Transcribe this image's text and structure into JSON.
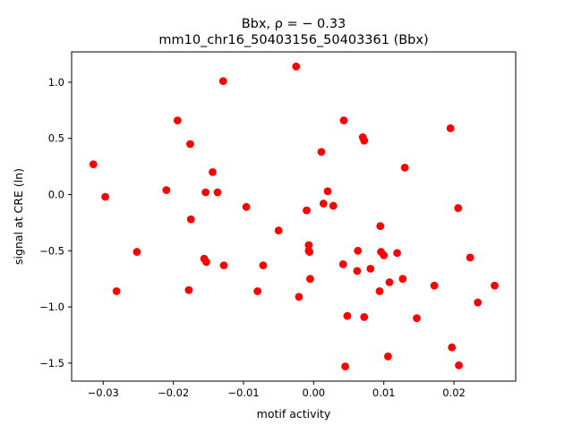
{
  "chart_data": {
    "type": "scatter",
    "title_line1": "Bbx, ρ = − 0.33",
    "title_line2": "mm10_chr16_50403156_50403361 (Bbx)",
    "xlabel": "motif activity",
    "ylabel": "signal at CRE (ln)",
    "xlim": [
      -0.0345,
      0.0288
    ],
    "ylim": [
      -1.66,
      1.27
    ],
    "xticks": [
      -0.03,
      -0.02,
      -0.01,
      0.0,
      0.01,
      0.02
    ],
    "xtick_labels": [
      "−0.03",
      "−0.02",
      "−0.01",
      "0.00",
      "0.01",
      "0.02"
    ],
    "yticks": [
      -1.5,
      -1.0,
      -0.5,
      0.0,
      0.5,
      1.0
    ],
    "ytick_labels": [
      "−1.5",
      "−1.0",
      "−0.5",
      "0.0",
      "0.5",
      "1.0"
    ],
    "grid": false,
    "marker_color": "#ff0000",
    "points": [
      {
        "x": -0.0314,
        "y": 0.27
      },
      {
        "x": -0.0297,
        "y": -0.02
      },
      {
        "x": -0.0281,
        "y": -0.86
      },
      {
        "x": -0.0252,
        "y": -0.51
      },
      {
        "x": -0.021,
        "y": 0.04
      },
      {
        "x": -0.0194,
        "y": 0.66
      },
      {
        "x": -0.0178,
        "y": -0.85
      },
      {
        "x": -0.0176,
        "y": 0.45
      },
      {
        "x": -0.0175,
        "y": -0.22
      },
      {
        "x": -0.0156,
        "y": -0.57
      },
      {
        "x": -0.0154,
        "y": 0.02
      },
      {
        "x": -0.0153,
        "y": -0.6
      },
      {
        "x": -0.0144,
        "y": 0.2
      },
      {
        "x": -0.0137,
        "y": 0.02
      },
      {
        "x": -0.0129,
        "y": 1.01
      },
      {
        "x": -0.0128,
        "y": -0.63
      },
      {
        "x": -0.0096,
        "y": -0.11
      },
      {
        "x": -0.008,
        "y": -0.86
      },
      {
        "x": -0.0072,
        "y": -0.63
      },
      {
        "x": -0.005,
        "y": -0.32
      },
      {
        "x": -0.0025,
        "y": 1.14
      },
      {
        "x": -0.0021,
        "y": -0.91
      },
      {
        "x": -0.001,
        "y": -0.14
      },
      {
        "x": -0.0007,
        "y": -0.45
      },
      {
        "x": -0.0007,
        "y": -0.5
      },
      {
        "x": -0.0006,
        "y": -0.51
      },
      {
        "x": -0.0005,
        "y": -0.75
      },
      {
        "x": 0.0011,
        "y": 0.38
      },
      {
        "x": 0.0014,
        "y": -0.08
      },
      {
        "x": 0.002,
        "y": 0.03
      },
      {
        "x": 0.0028,
        "y": -0.1
      },
      {
        "x": 0.0042,
        "y": -0.62
      },
      {
        "x": 0.0043,
        "y": 0.66
      },
      {
        "x": 0.0045,
        "y": -1.53
      },
      {
        "x": 0.0048,
        "y": -1.08
      },
      {
        "x": 0.0062,
        "y": -0.68
      },
      {
        "x": 0.0063,
        "y": -0.5
      },
      {
        "x": 0.007,
        "y": 0.51
      },
      {
        "x": 0.0072,
        "y": 0.48
      },
      {
        "x": 0.0072,
        "y": -1.09
      },
      {
        "x": 0.0081,
        "y": -0.66
      },
      {
        "x": 0.0094,
        "y": -0.86
      },
      {
        "x": 0.0095,
        "y": -0.28
      },
      {
        "x": 0.0096,
        "y": -0.51
      },
      {
        "x": 0.01,
        "y": -0.54
      },
      {
        "x": 0.0106,
        "y": -1.44
      },
      {
        "x": 0.0108,
        "y": -0.78
      },
      {
        "x": 0.0119,
        "y": -0.52
      },
      {
        "x": 0.0127,
        "y": -0.75
      },
      {
        "x": 0.013,
        "y": 0.24
      },
      {
        "x": 0.0147,
        "y": -1.1
      },
      {
        "x": 0.0172,
        "y": -0.81
      },
      {
        "x": 0.0195,
        "y": 0.59
      },
      {
        "x": 0.0197,
        "y": -1.36
      },
      {
        "x": 0.0206,
        "y": -0.12
      },
      {
        "x": 0.0207,
        "y": -1.52
      },
      {
        "x": 0.0223,
        "y": -0.56
      },
      {
        "x": 0.0234,
        "y": -0.96
      },
      {
        "x": 0.0258,
        "y": -0.81
      }
    ]
  }
}
